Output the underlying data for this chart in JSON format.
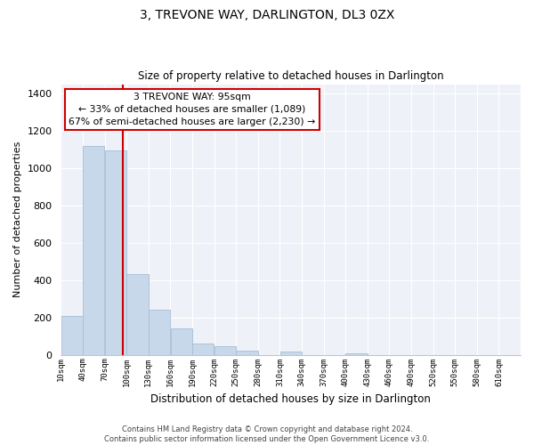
{
  "title": "3, TREVONE WAY, DARLINGTON, DL3 0ZX",
  "subtitle": "Size of property relative to detached houses in Darlington",
  "xlabel": "Distribution of detached houses by size in Darlington",
  "ylabel": "Number of detached properties",
  "bar_color": "#c8d8eb",
  "bar_edge_color": "#a8bdd4",
  "vline_color": "#cc0000",
  "vline_x": 95,
  "annotation_title": "3 TREVONE WAY: 95sqm",
  "annotation_line1": "← 33% of detached houses are smaller (1,089)",
  "annotation_line2": "67% of semi-detached houses are larger (2,230) →",
  "bin_edges": [
    10,
    40,
    70,
    100,
    130,
    160,
    190,
    220,
    250,
    280,
    310,
    340,
    370,
    400,
    430,
    460,
    490,
    520,
    550,
    580,
    610
  ],
  "bin_heights": [
    210,
    1120,
    1095,
    430,
    240,
    140,
    60,
    48,
    20,
    0,
    15,
    0,
    0,
    8,
    0,
    0,
    0,
    0,
    0,
    0
  ],
  "ylim": [
    0,
    1450
  ],
  "yticks": [
    0,
    200,
    400,
    600,
    800,
    1000,
    1200,
    1400
  ],
  "xtick_labels": [
    "10sqm",
    "40sqm",
    "70sqm",
    "100sqm",
    "130sqm",
    "160sqm",
    "190sqm",
    "220sqm",
    "250sqm",
    "280sqm",
    "310sqm",
    "340sqm",
    "370sqm",
    "400sqm",
    "430sqm",
    "460sqm",
    "490sqm",
    "520sqm",
    "550sqm",
    "580sqm",
    "610sqm"
  ],
  "footnote": "Contains HM Land Registry data © Crown copyright and database right 2024.\nContains public sector information licensed under the Open Government Licence v3.0.",
  "background_color": "#ffffff",
  "plot_bg_color": "#eef2f8",
  "grid_color": "#ffffff"
}
